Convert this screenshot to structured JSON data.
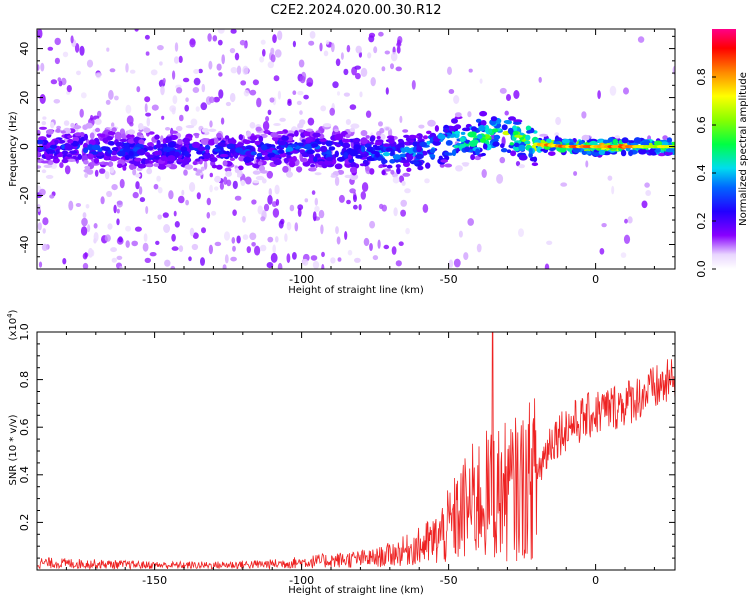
{
  "figure": {
    "title": "C2E2.2024.020.00.30.R12"
  },
  "colors": {
    "snr_line": "#ee2222",
    "axis": "#000000",
    "background": "#ffffff"
  },
  "chart_data": [
    {
      "type": "heatmap",
      "xlabel": "Height of straight line (km)",
      "ylabel": "Frequency (Hz)",
      "xlim": [
        -190,
        27
      ],
      "ylim": [
        -50,
        48
      ],
      "xticks": [
        -150,
        -100,
        -50,
        0
      ],
      "xtick_labels": [
        "-150",
        "-100",
        "-50",
        "0"
      ],
      "yticks": [
        -40,
        -20,
        0,
        20,
        40
      ],
      "ytick_labels": [
        "-40",
        "-20",
        "0",
        "20",
        "40"
      ],
      "colorbar": {
        "label": "Normalized spectral amplitude",
        "range": [
          0,
          1
        ],
        "ticks": [
          0.0,
          0.2,
          0.4,
          0.6,
          0.8
        ],
        "tick_labels": [
          "0.0",
          "0.2",
          "0.4",
          "0.6",
          "0.8"
        ]
      },
      "ridge": {
        "x": [
          -190,
          -150,
          -120,
          -100,
          -80,
          -70,
          -60,
          -50,
          -40,
          -30,
          -20,
          -10,
          0,
          10,
          20,
          27
        ],
        "center_freq_hz": [
          0,
          -2,
          -2,
          -1,
          -3,
          -3,
          -2,
          2,
          4,
          5,
          1,
          0,
          0,
          0,
          0,
          0
        ],
        "peak_amplitude": [
          0.3,
          0.3,
          0.3,
          0.35,
          0.35,
          0.4,
          0.4,
          0.55,
          0.6,
          0.65,
          0.8,
          0.85,
          0.85,
          0.85,
          0.7,
          0.75
        ]
      },
      "grid": false
    },
    {
      "type": "line",
      "xlabel": "Height of straight line (km)",
      "ylabel": "SNR (10 * v/v)",
      "y_multiplier": "(x10^4)",
      "y_multiplier_text": "(x10",
      "y_multiplier_exp": "4",
      "y_multiplier_close": ")",
      "xlim": [
        -190,
        27
      ],
      "ylim": [
        0,
        1.0
      ],
      "xticks": [
        -150,
        -100,
        -50,
        0
      ],
      "xtick_labels": [
        "-150",
        "-100",
        "-50",
        "0"
      ],
      "yticks": [
        0.2,
        0.4,
        0.6,
        0.8,
        1.0
      ],
      "ytick_labels": [
        "0.2",
        "0.4",
        "0.6",
        "0.8",
        "1.0"
      ],
      "series": [
        {
          "x": [
            -190,
            -170,
            -150,
            -130,
            -110,
            -90,
            -75,
            -65,
            -55,
            -50,
            -45,
            -40,
            -35,
            -30,
            -25,
            -20,
            -15,
            -10,
            -5,
            0,
            10,
            20,
            27
          ],
          "y": [
            0.03,
            0.025,
            0.02,
            0.02,
            0.025,
            0.04,
            0.05,
            0.08,
            0.12,
            0.18,
            0.25,
            0.3,
            0.32,
            0.33,
            0.35,
            0.4,
            0.55,
            0.6,
            0.63,
            0.66,
            0.7,
            0.76,
            0.8
          ],
          "peak": {
            "x": -35,
            "y": 1.0
          }
        }
      ],
      "grid": false
    }
  ]
}
